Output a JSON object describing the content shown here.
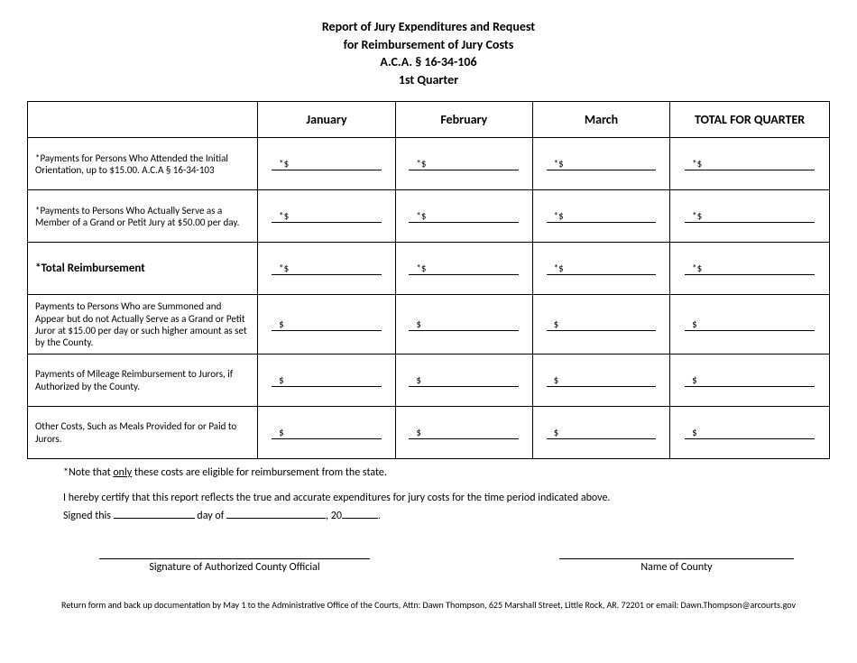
{
  "header": {
    "line1": "Report of Jury Expenditures and Request",
    "line2": "for Reimbursement of Jury Costs",
    "line3": "A.C.A. § 16-34-106",
    "line4": "1st Quarter"
  },
  "columns": {
    "blank": "",
    "m1": "January",
    "m2": "February",
    "m3": "March",
    "total": "TOTAL FOR QUARTER"
  },
  "rows": [
    {
      "label": "*Payments for Persons Who Attended the Initial Orientation, up to $15.00. A.C.A § 16-34-103",
      "bold": false,
      "prefix": "*$"
    },
    {
      "label": "*Payments to Persons Who Actually Serve as a Member of a Grand or Petit Jury at $50.00 per day.",
      "bold": false,
      "prefix": "*$"
    },
    {
      "label": "*Total Reimbursement",
      "bold": true,
      "prefix": "*$"
    },
    {
      "label": "Payments to Persons Who are Summoned and Appear but do not Actually Serve as a Grand or Petit Juror at $15.00 per day or such higher amount as set by the County.",
      "bold": false,
      "prefix": "$"
    },
    {
      "label": "Payments of Mileage Reimbursement to Jurors, if Authorized by the County.",
      "bold": false,
      "prefix": "$"
    },
    {
      "label": "Other Costs, Such as Meals Provided for or Paid to Jurors.",
      "bold": false,
      "prefix": "$"
    }
  ],
  "footnote_pre": "*Note that ",
  "footnote_u": "only",
  "footnote_post": " these costs are eligible for reimbursement from the state.",
  "cert": "I hereby certify that this report reflects the true and accurate expenditures for jury costs for the time period indicated above.",
  "sign_pre": "Signed this ",
  "sign_mid": " day of ",
  "sign_year": ", 20",
  "sign_end": ".",
  "sig1": "Signature of Authorized County Official",
  "sig2": "Name of County",
  "return": "Return form and back up documentation by May 1 to the Administrative Office of the Courts, Attn: Dawn Thompson, 625 Marshall Street, Little Rock, AR. 72201 or email: Dawn.Thompson@arcourts.gov"
}
